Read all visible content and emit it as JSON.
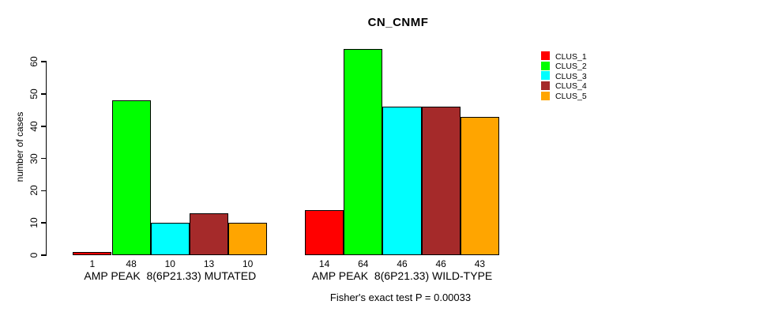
{
  "chart_data": {
    "type": "bar",
    "title": "CN_CNMF",
    "ylabel": "number of cases",
    "xlabel": "",
    "ylim": [
      0,
      60
    ],
    "yticks": [
      0,
      10,
      20,
      30,
      40,
      50,
      60
    ],
    "grid": false,
    "legend_position": "right-outside-top",
    "bar_value_labels_shown": true,
    "categories": [
      "AMP PEAK  8(6P21.33) MUTATED",
      "AMP PEAK  8(6P21.33) WILD-TYPE"
    ],
    "series": [
      {
        "name": "CLUS_1",
        "color": "#ff0000",
        "values": [
          1,
          14
        ]
      },
      {
        "name": "CLUS_2",
        "color": "#00ff00",
        "values": [
          48,
          64
        ]
      },
      {
        "name": "CLUS_3",
        "color": "#00ffff",
        "values": [
          10,
          46
        ]
      },
      {
        "name": "CLUS_4",
        "color": "#a52a2a",
        "values": [
          13,
          46
        ]
      },
      {
        "name": "CLUS_5",
        "color": "#ffa500",
        "values": [
          10,
          43
        ]
      }
    ],
    "annotation": "Fisher's exact test P = 0.00033"
  },
  "colors": {
    "background": "#ffffff",
    "axis": "#000000",
    "text": "#000000"
  }
}
